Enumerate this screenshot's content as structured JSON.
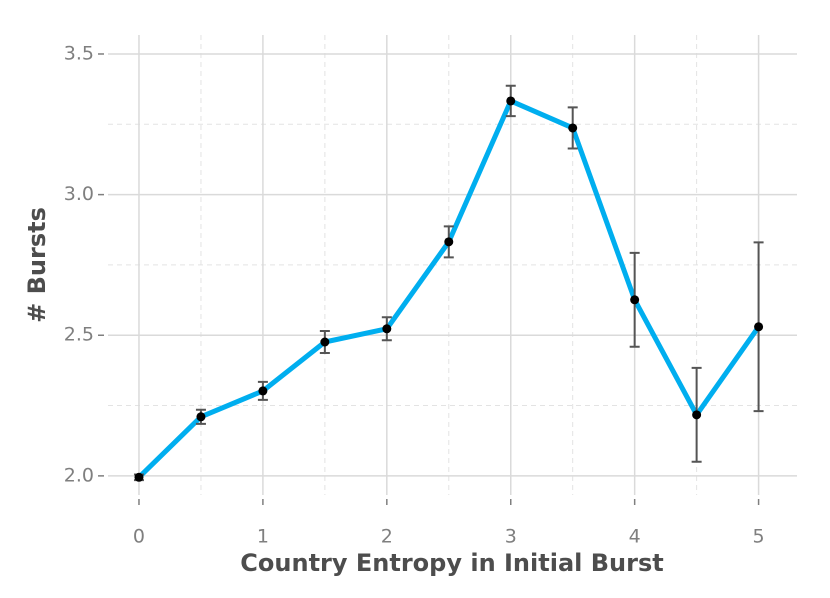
{
  "chart_data": {
    "type": "line",
    "x_label": "Country Entropy in Initial Burst",
    "y_label": "# Bursts",
    "x": [
      0,
      0.5,
      1,
      1.5,
      2,
      2.5,
      3,
      3.5,
      4,
      4.5,
      5
    ],
    "values": [
      1.995,
      2.21,
      2.302,
      2.476,
      2.523,
      2.832,
      3.333,
      3.237,
      2.626,
      2.217,
      2.53
    ],
    "errors": [
      0.01,
      0.025,
      0.032,
      0.039,
      0.041,
      0.055,
      0.054,
      0.073,
      0.167,
      0.167,
      0.3
    ],
    "color": "#00aeef",
    "xlim": [
      -0.25,
      5.31
    ],
    "ylim": [
      1.932,
      3.5675
    ],
    "xticks": [
      0,
      1,
      2,
      3,
      4,
      5
    ],
    "yticks": [
      {
        "value": 2.0,
        "label": "2.0"
      },
      {
        "value": 2.5,
        "label": "2.5"
      },
      {
        "value": 3.0,
        "label": "3.0"
      },
      {
        "value": 3.5,
        "label": "3.5"
      }
    ],
    "grid": true
  }
}
